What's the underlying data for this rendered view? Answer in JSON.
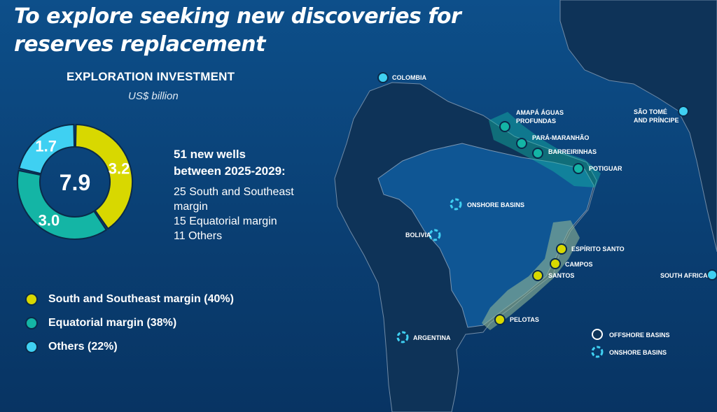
{
  "title": "To explore seeking new discoveries for reserves replacement",
  "investment": {
    "heading": "EXPLORATION INVESTMENT",
    "unit": "US$ billion"
  },
  "wells": {
    "headline_1": "51 new wells",
    "headline_2": "between 2025-2029:",
    "items": [
      "25 South and Southeast",
      "margin",
      "15 Equatorial margin",
      "11 Others"
    ]
  },
  "colors": {
    "south": "#d8d800",
    "equatorial": "#14b5a5",
    "others": "#3fd0f2",
    "offshore": "#0e3358"
  },
  "chart_data": {
    "type": "pie",
    "donut": true,
    "total_label": "7.9",
    "slices": [
      {
        "name": "South and Southeast margin",
        "value": 3.2,
        "label": "3.2",
        "color": "#d8d800"
      },
      {
        "name": "Equatorial margin",
        "value": 3.0,
        "label": "3.0",
        "color": "#14b5a5"
      },
      {
        "name": "Others",
        "value": 1.7,
        "label": "1.7",
        "color": "#3fd0f2"
      }
    ]
  },
  "legend": [
    {
      "label": "South and Southeast margin (40%)",
      "color": "#d8d800"
    },
    {
      "label": "Equatorial margin (38%)",
      "color": "#14b5a5"
    },
    {
      "label": "Others (22%)",
      "color": "#3fd0f2"
    }
  ],
  "map": {
    "labels": {
      "colombia": "COLOMBIA",
      "amapa_1": "AMAPÁ ÁGUAS",
      "amapa_2": "PROFUNDAS",
      "para": "PARÁ-MARANHÃO",
      "barreirinhas": "BARREIRINHAS",
      "potiguar": "POTIGUAR",
      "sao_tome_1": "SÃO TOMÉ",
      "sao_tome_2": "AND PRÍNCIPE",
      "onshore_brazil": "ONSHORE BASINS",
      "bolivia": "BOLIVIA",
      "espirito_santo": "ESPÍRITO SANTO",
      "campos": "CAMPOS",
      "santos": "SANTOS",
      "south_africa": "SOUTH AFRICA",
      "pelotas": "PELOTAS",
      "argentina": "ARGENTINA"
    },
    "map_legend": {
      "offshore": "OFFSHORE BASINS",
      "onshore": "ONSHORE BASINS"
    }
  }
}
